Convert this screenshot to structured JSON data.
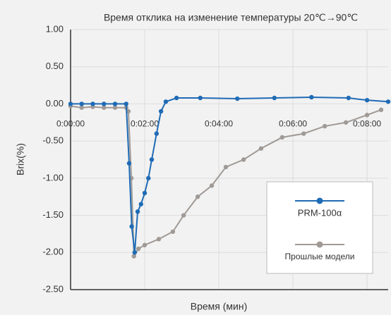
{
  "chart_data": {
    "type": "line",
    "title": "Время отклика на изменение температуры 20℃→90℃",
    "x_label": "Время (мин)",
    "y_label": "Brix(%)",
    "xlim": [
      0,
      8.57
    ],
    "ylim": [
      -2.5,
      1.0
    ],
    "xticks": [
      {
        "value": 0,
        "label": "0:00:00"
      },
      {
        "value": 2,
        "label": "0:02:00"
      },
      {
        "value": 4,
        "label": "0:04:00"
      },
      {
        "value": 6,
        "label": "0:06:00"
      },
      {
        "value": 8,
        "label": "0:08:00"
      }
    ],
    "yticks": [
      {
        "value": 1,
        "label": "1.00"
      },
      {
        "value": 0.5,
        "label": "0.50"
      },
      {
        "value": 0,
        "label": "0.00"
      },
      {
        "value": -0.5,
        "label": "-0.50"
      },
      {
        "value": -1,
        "label": "-1.00"
      },
      {
        "value": -1.5,
        "label": "-1.50"
      },
      {
        "value": -2,
        "label": "-2.00"
      },
      {
        "value": -2.5,
        "label": "-2.50"
      }
    ],
    "grid": true,
    "series": [
      {
        "name": "PRM-100α",
        "color": "#1f6bb5",
        "x": [
          0,
          0.3,
          0.6,
          0.9,
          1.2,
          1.5,
          1.58,
          1.65,
          1.73,
          1.81,
          1.9,
          2.0,
          2.1,
          2.19,
          2.32,
          2.44,
          2.57,
          2.86,
          3.5,
          4.5,
          5.5,
          6.5,
          7.5,
          8.0,
          8.57
        ],
        "values": [
          0,
          0,
          0,
          0,
          0,
          0,
          -0.8,
          -1.65,
          -2.0,
          -1.45,
          -1.35,
          -1.2,
          -1.0,
          -0.75,
          -0.4,
          -0.1,
          0.03,
          0.08,
          0.08,
          0.07,
          0.08,
          0.09,
          0.08,
          0.05,
          0.03
        ]
      },
      {
        "name": "Прошлые модели",
        "color": "#a09a96",
        "x": [
          0,
          0.3,
          0.6,
          0.9,
          1.2,
          1.5,
          1.56,
          1.64,
          1.71,
          1.83,
          2.0,
          2.38,
          2.76,
          3.05,
          3.43,
          3.81,
          4.19,
          4.67,
          5.14,
          5.71,
          6.29,
          6.86,
          7.43,
          8.0,
          8.38
        ],
        "values": [
          -0.03,
          -0.05,
          -0.04,
          -0.05,
          -0.05,
          -0.05,
          -0.1,
          -1.0,
          -2.05,
          -1.95,
          -1.9,
          -1.82,
          -1.72,
          -1.5,
          -1.25,
          -1.1,
          -0.85,
          -0.75,
          -0.6,
          -0.45,
          -0.4,
          -0.3,
          -0.25,
          -0.15,
          -0.08
        ]
      }
    ]
  }
}
